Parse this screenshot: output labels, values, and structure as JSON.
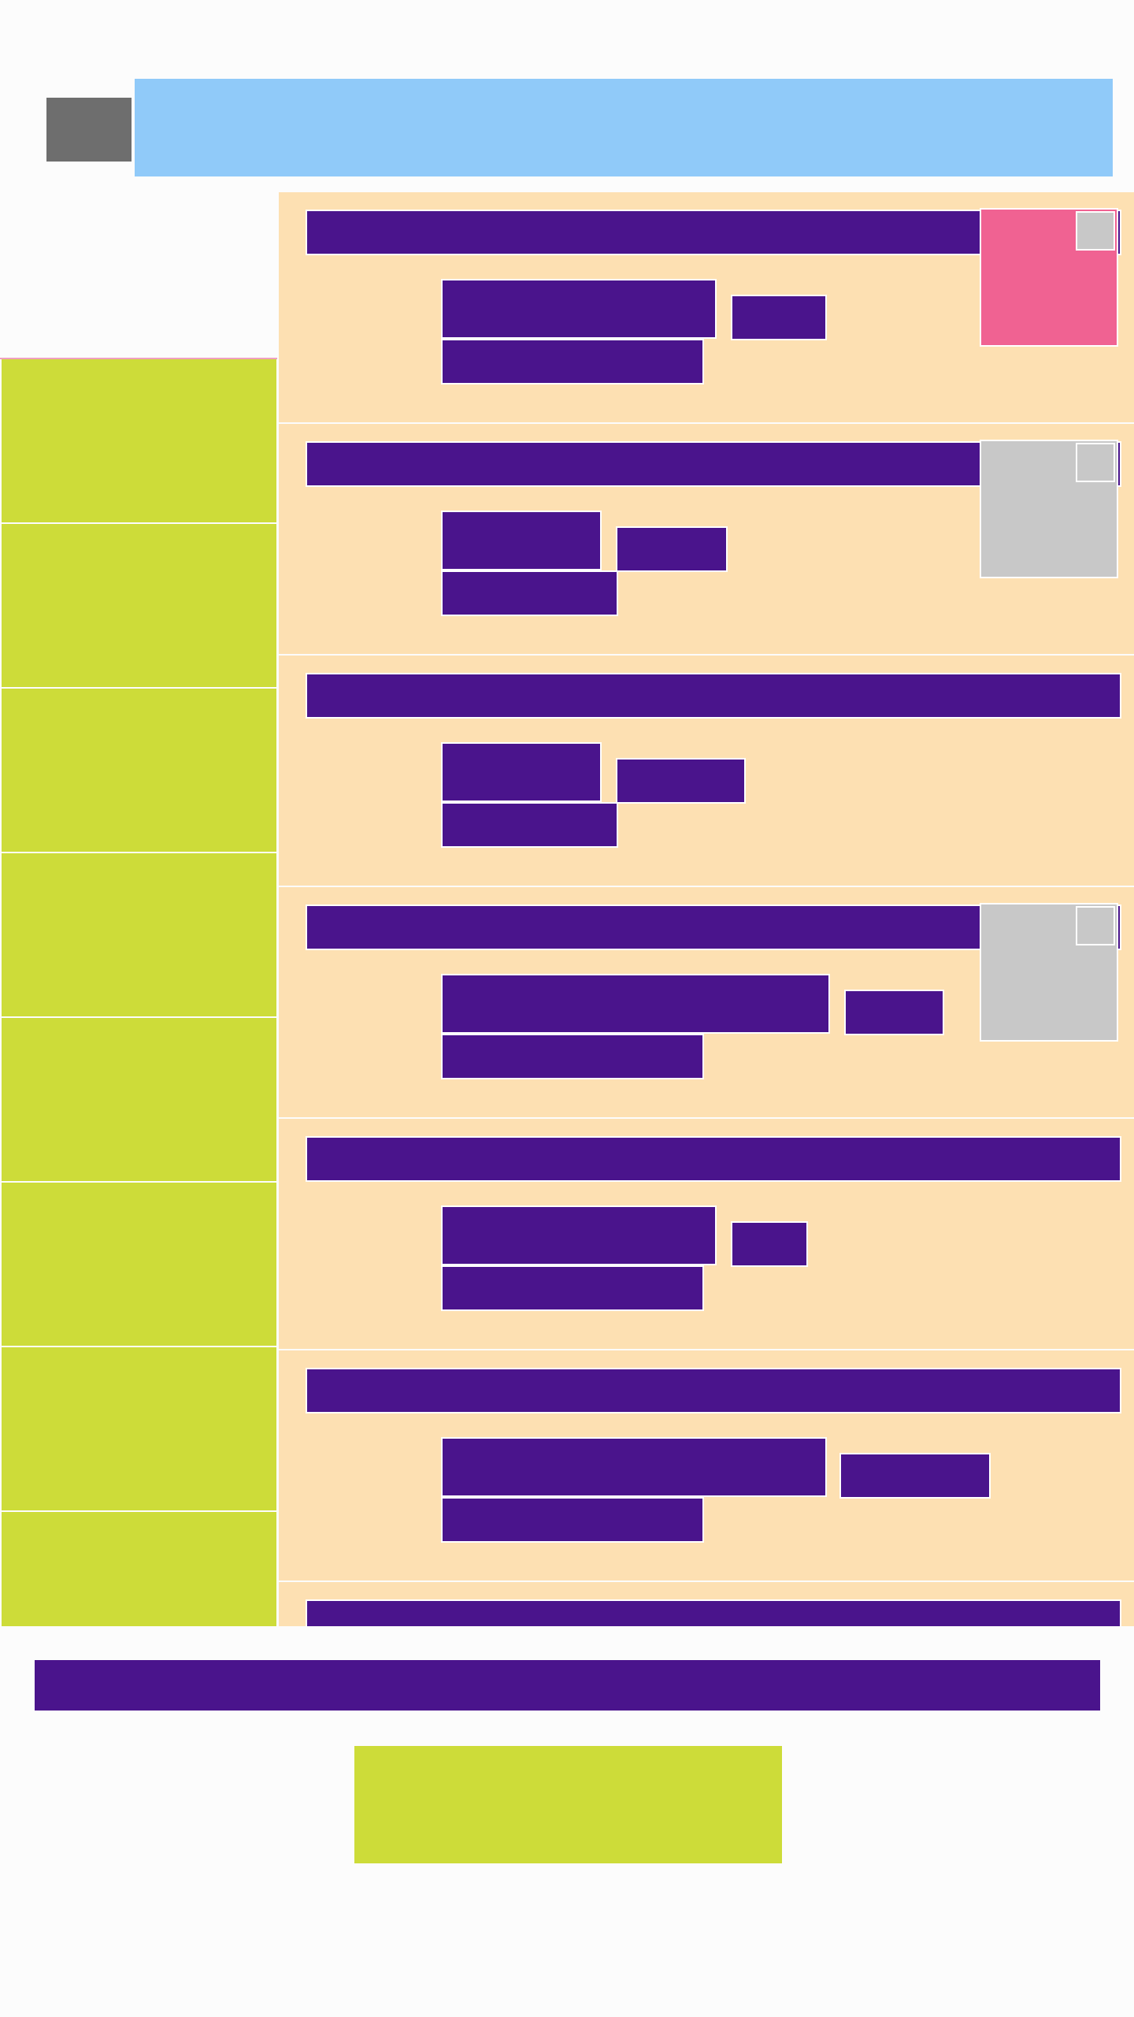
{
  "header": {
    "back_label": "",
    "title": ""
  },
  "sidebar": {
    "items": [
      {
        "label": ""
      },
      {
        "label": ""
      },
      {
        "label": ""
      },
      {
        "label": ""
      },
      {
        "label": ""
      },
      {
        "label": ""
      },
      {
        "label": ""
      },
      {
        "label": ""
      },
      {
        "label": ""
      }
    ]
  },
  "list": {
    "rows": [
      {
        "title": "",
        "primary": "",
        "chip": "",
        "secondary": "",
        "thumb": "pink",
        "checked": false
      },
      {
        "title": "",
        "primary": "",
        "chip": "",
        "secondary": "",
        "thumb": "gray",
        "checked": false
      },
      {
        "title": "",
        "primary": "",
        "chip": "",
        "secondary": "",
        "thumb": "none",
        "checked": false
      },
      {
        "title": "",
        "primary": "",
        "chip": "",
        "secondary": "",
        "thumb": "gray",
        "checked": false
      },
      {
        "title": "",
        "primary": "",
        "chip": "",
        "secondary": "",
        "thumb": "none",
        "checked": false
      },
      {
        "title": "",
        "primary": "",
        "chip": "",
        "secondary": "",
        "thumb": "none",
        "checked": false
      },
      {
        "title": ""
      }
    ]
  },
  "footer": {
    "bar_text": "",
    "button_label": ""
  },
  "colors": {
    "accent": "#4a148c",
    "row_background": "#fde0b2",
    "sidebar_item": "#cddc39",
    "header": "#90caf9",
    "thumb_pink": "#f06292",
    "thumb_gray": "#c8c8c8",
    "back_button": "#6e6e6e"
  }
}
